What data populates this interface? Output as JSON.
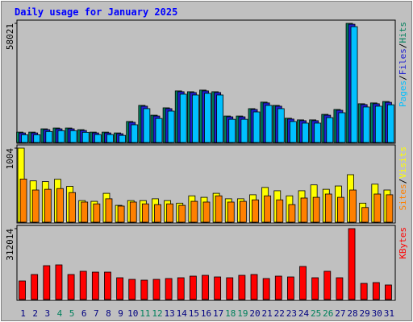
{
  "title": "Daily usage for January 2025",
  "legend_separator": "/",
  "chart_data": [
    {
      "type": "bar",
      "ylim": [
        0,
        58021
      ],
      "yticks": [
        58021
      ],
      "series": [
        {
          "name": "Pages",
          "color": "#00c0ff",
          "values": [
            3400,
            3400,
            5000,
            5400,
            5400,
            4600,
            3500,
            3500,
            3100,
            8300,
            16200,
            11400,
            15000,
            23300,
            22900,
            23700,
            22900,
            11000,
            11000,
            14600,
            17800,
            16200,
            9900,
            9100,
            9100,
            11800,
            14200,
            56400,
            17000,
            17400,
            18100
          ]
        },
        {
          "name": "Files",
          "color": "#1f1fd0",
          "values": [
            4300,
            4300,
            5900,
            6300,
            6300,
            5500,
            4300,
            4300,
            3900,
            9500,
            17400,
            12600,
            16200,
            24500,
            24100,
            24900,
            24100,
            12200,
            12200,
            15800,
            19000,
            17400,
            11100,
            10300,
            10300,
            13000,
            15400,
            57600,
            18200,
            18600,
            19300
          ]
        },
        {
          "name": "Hits",
          "color": "#00805c",
          "values": [
            4700,
            4700,
            6300,
            6700,
            6700,
            5900,
            4700,
            4700,
            4300,
            9900,
            17800,
            13000,
            16600,
            24900,
            24500,
            25300,
            24500,
            12600,
            12600,
            16200,
            19400,
            17800,
            11500,
            10700,
            10700,
            13400,
            15800,
            58021,
            18600,
            19000,
            19700
          ]
        }
      ]
    },
    {
      "type": "bar",
      "ylim": [
        0,
        1004
      ],
      "yticks": [
        1004
      ],
      "series": [
        {
          "name": "Sites",
          "color": "#ff8000",
          "values": [
            580,
            430,
            440,
            450,
            395,
            265,
            240,
            310,
            210,
            265,
            240,
            230,
            240,
            220,
            275,
            265,
            350,
            265,
            275,
            295,
            350,
            295,
            230,
            320,
            330,
            375,
            330,
            430,
            190,
            375,
            365
          ]
        },
        {
          "name": "Visits",
          "color": "#ffff00",
          "values": [
            1004,
            555,
            545,
            577,
            480,
            285,
            275,
            385,
            220,
            285,
            285,
            310,
            285,
            250,
            350,
            330,
            385,
            310,
            310,
            365,
            465,
            420,
            350,
            420,
            500,
            440,
            485,
            640,
            250,
            510,
            430
          ]
        }
      ]
    },
    {
      "type": "bar",
      "ylim": [
        0,
        312014
      ],
      "yticks": [
        312014
      ],
      "categories": [
        "1",
        "2",
        "3",
        "4",
        "5",
        "6",
        "7",
        "8",
        "9",
        "10",
        "11",
        "12",
        "13",
        "14",
        "15",
        "16",
        "17",
        "18",
        "19",
        "20",
        "21",
        "22",
        "23",
        "24",
        "25",
        "26",
        "27",
        "28",
        "29",
        "30",
        "31"
      ],
      "category_colors": [
        "#000080",
        "#000080",
        "#000080",
        "#00805c",
        "#00805c",
        "#000080",
        "#000080",
        "#000080",
        "#000080",
        "#000080",
        "#00805c",
        "#00805c",
        "#000080",
        "#000080",
        "#000080",
        "#000080",
        "#000080",
        "#00805c",
        "#00805c",
        "#000080",
        "#000080",
        "#000080",
        "#000080",
        "#000080",
        "#00805c",
        "#00805c",
        "#000080",
        "#000080",
        "#000080",
        "#000080",
        "#000080"
      ],
      "series": [
        {
          "name": "KBytes",
          "color": "#ff0000",
          "values": [
            78900,
            107600,
            147000,
            150600,
            107600,
            122000,
            118300,
            118300,
            93200,
            86000,
            82500,
            86000,
            89700,
            93200,
            100400,
            104000,
            96800,
            93200,
            104000,
            107600,
            89700,
            100400,
            96800,
            143500,
            93200,
            122000,
            93200,
            312014,
            68100,
            71700,
            61000
          ]
        }
      ]
    }
  ]
}
